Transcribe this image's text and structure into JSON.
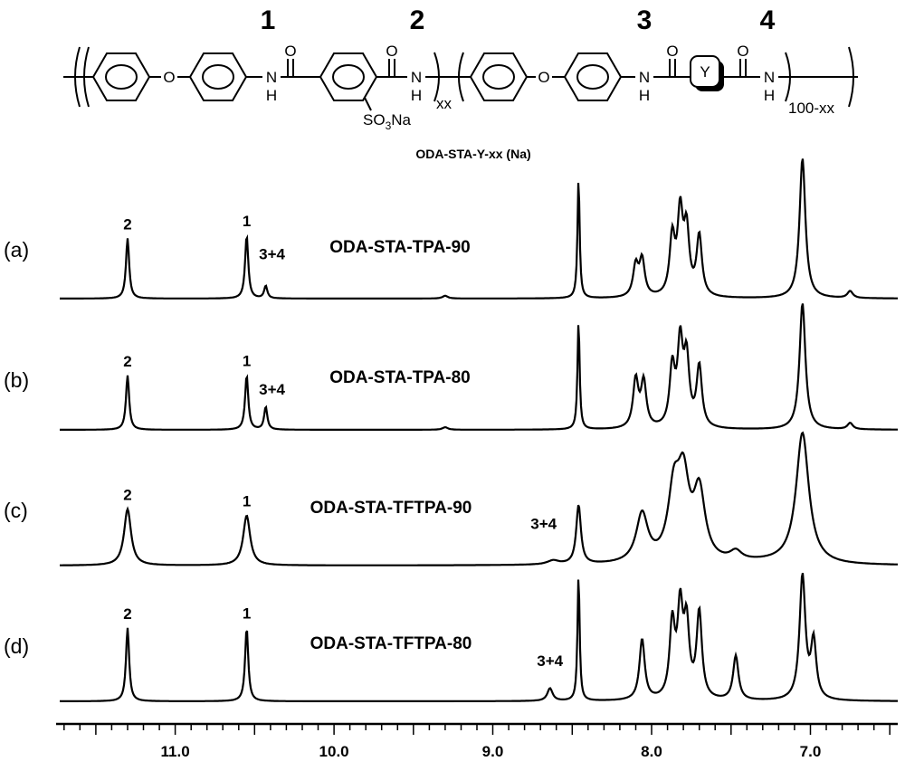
{
  "structure": {
    "caption": "ODA-STA-Y-xx (Na)",
    "unit_numbers": [
      "1",
      "2",
      "3",
      "4"
    ],
    "oxygen": "O",
    "nitrogen": "N",
    "hydrogen": "H",
    "substituent": "SO",
    "substituent_sub": "3",
    "substituent_tail": "Na",
    "ring_label": "Y",
    "subscript_xx": "xx",
    "subscript_100xx": "100-xx"
  },
  "colors": {
    "line": "#000000",
    "background": "#ffffff"
  },
  "chart_data": {
    "type": "line",
    "title": "",
    "xlabel": "",
    "ylabel": "",
    "x_axis": {
      "reversed": true,
      "xlim": [
        11.75,
        6.45
      ],
      "ticks": [
        "11.0",
        "10.0",
        "9.0",
        "8.0",
        "7.0"
      ],
      "tick_values": [
        11.0,
        10.0,
        9.0,
        8.0,
        7.0
      ]
    },
    "series": [
      {
        "id": "a",
        "label": "(a)",
        "name": "ODA-STA-TPA-90",
        "peaks": [
          [
            11.3,
            0.43
          ],
          [
            10.55,
            0.45
          ],
          [
            10.43,
            0.09
          ],
          [
            9.3,
            0.02
          ],
          [
            8.46,
            0.86
          ],
          [
            8.1,
            0.22
          ],
          [
            8.06,
            0.26
          ],
          [
            7.87,
            0.41
          ],
          [
            7.82,
            0.57
          ],
          [
            7.78,
            0.45
          ],
          [
            7.7,
            0.43
          ],
          [
            7.05,
            1.0
          ],
          [
            6.75,
            0.05
          ]
        ],
        "annotations": [
          {
            "text": "2",
            "x": 11.3
          },
          {
            "text": "1",
            "x": 10.55
          },
          {
            "text": "3+4",
            "x": 10.39
          }
        ]
      },
      {
        "id": "b",
        "label": "(b)",
        "name": "ODA-STA-TPA-80",
        "peaks": [
          [
            11.3,
            0.43
          ],
          [
            10.55,
            0.43
          ],
          [
            10.43,
            0.18
          ],
          [
            9.3,
            0.02
          ],
          [
            8.46,
            0.86
          ],
          [
            8.1,
            0.38
          ],
          [
            8.05,
            0.36
          ],
          [
            7.87,
            0.46
          ],
          [
            7.82,
            0.64
          ],
          [
            7.78,
            0.52
          ],
          [
            7.7,
            0.48
          ],
          [
            7.05,
            1.0
          ],
          [
            6.75,
            0.05
          ]
        ],
        "annotations": [
          {
            "text": "2",
            "x": 11.3
          },
          {
            "text": "1",
            "x": 10.55
          },
          {
            "text": "3+4",
            "x": 10.39
          }
        ]
      },
      {
        "id": "c",
        "label": "(c)",
        "name": "ODA-STA-TFTPA-90",
        "peaks": [
          [
            11.3,
            0.43
          ],
          [
            10.55,
            0.38
          ],
          [
            8.62,
            0.03
          ],
          [
            8.46,
            0.45
          ],
          [
            8.06,
            0.37
          ],
          [
            7.86,
            0.5
          ],
          [
            7.8,
            0.58
          ],
          [
            7.7,
            0.52
          ],
          [
            7.47,
            0.07
          ],
          [
            7.05,
            1.0
          ]
        ],
        "annotations": [
          {
            "text": "2",
            "x": 11.3
          },
          {
            "text": "1",
            "x": 10.55
          },
          {
            "text": "3+4",
            "x": 8.68
          }
        ]
      },
      {
        "id": "d",
        "label": "(d)",
        "name": "ODA-STA-TFTPA-80",
        "peaks": [
          [
            11.3,
            0.58
          ],
          [
            10.55,
            0.58
          ],
          [
            8.64,
            0.1
          ],
          [
            8.46,
            1.0
          ],
          [
            8.06,
            0.48
          ],
          [
            7.87,
            0.58
          ],
          [
            7.82,
            0.68
          ],
          [
            7.78,
            0.56
          ],
          [
            7.7,
            0.68
          ],
          [
            7.47,
            0.35
          ],
          [
            7.05,
            0.98
          ],
          [
            6.98,
            0.45
          ]
        ],
        "annotations": [
          {
            "text": "2",
            "x": 11.3
          },
          {
            "text": "1",
            "x": 10.55
          },
          {
            "text": "3+4",
            "x": 8.64
          }
        ]
      }
    ]
  }
}
